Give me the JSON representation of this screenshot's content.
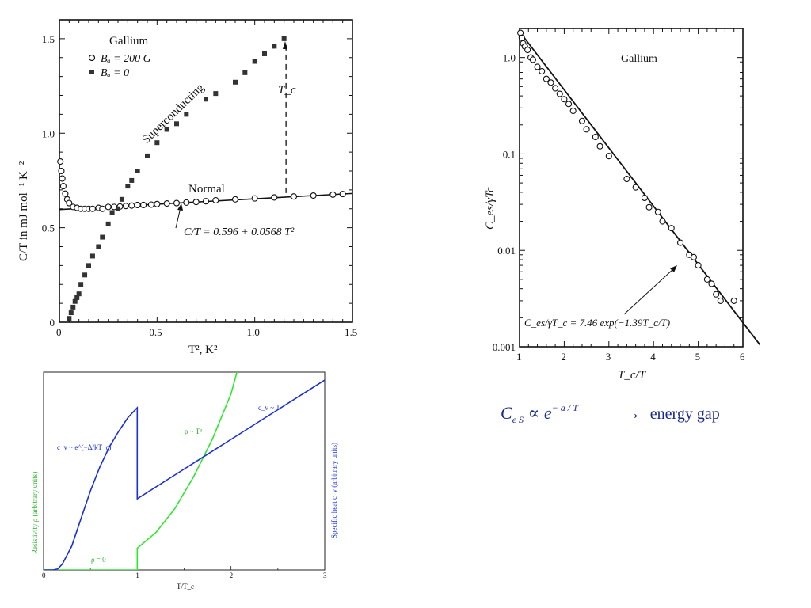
{
  "chart_data": [
    {
      "type": "scatter",
      "xlabel": "T², K²",
      "ylabel": "C/T in mJ mol⁻¹ K⁻²",
      "xlim": [
        0,
        1.5
      ],
      "ylim": [
        0,
        1.6
      ],
      "x_ticks": [
        "0",
        "0.5",
        "1.0",
        "1.5"
      ],
      "y_ticks": [
        "0",
        "0.5",
        "1.0",
        "1.5"
      ],
      "legend": {
        "title": "Gallium",
        "entries": [
          "Bₐ = 200 G",
          "Bₐ = 0"
        ],
        "placement": "top-left"
      },
      "annotations": [
        "Superconducting",
        "Normal",
        "T_c",
        "C/T = 0.596 + 0.0568 T²"
      ],
      "fit_line": {
        "intercept": 0.596,
        "slope": 0.0568
      },
      "tc_marker": {
        "x": 1.16,
        "y_top": 1.5
      },
      "series": [
        {
          "name": "Bₐ = 200 G",
          "marker": "open-circle",
          "x": [
            0.005,
            0.01,
            0.015,
            0.02,
            0.03,
            0.04,
            0.05,
            0.07,
            0.09,
            0.11,
            0.13,
            0.15,
            0.17,
            0.2,
            0.22,
            0.25,
            0.28,
            0.31,
            0.34,
            0.37,
            0.4,
            0.43,
            0.47,
            0.5,
            0.55,
            0.6,
            0.65,
            0.7,
            0.75,
            0.8,
            0.9,
            1.0,
            1.1,
            1.2,
            1.3,
            1.4,
            1.45
          ],
          "y": [
            0.85,
            0.8,
            0.76,
            0.72,
            0.68,
            0.65,
            0.63,
            0.61,
            0.605,
            0.6,
            0.6,
            0.6,
            0.6,
            0.605,
            0.6,
            0.61,
            0.61,
            0.612,
            0.615,
            0.617,
            0.62,
            0.62,
            0.622,
            0.625,
            0.628,
            0.63,
            0.633,
            0.636,
            0.64,
            0.645,
            0.65,
            0.655,
            0.66,
            0.665,
            0.67,
            0.675,
            0.678
          ]
        },
        {
          "name": "Bₐ = 0",
          "marker": "filled-square",
          "x": [
            0.05,
            0.06,
            0.07,
            0.08,
            0.09,
            0.1,
            0.11,
            0.13,
            0.15,
            0.17,
            0.2,
            0.22,
            0.25,
            0.27,
            0.3,
            0.32,
            0.35,
            0.37,
            0.4,
            0.45,
            0.5,
            0.55,
            0.6,
            0.65,
            0.75,
            0.8,
            0.9,
            0.95,
            1.0,
            1.05,
            1.1,
            1.15
          ],
          "y": [
            0.02,
            0.05,
            0.08,
            0.11,
            0.13,
            0.15,
            0.2,
            0.25,
            0.3,
            0.35,
            0.4,
            0.45,
            0.52,
            0.58,
            0.6,
            0.65,
            0.72,
            0.75,
            0.8,
            0.88,
            0.95,
            1.02,
            1.05,
            1.1,
            1.18,
            1.21,
            1.27,
            1.32,
            1.38,
            1.42,
            1.46,
            1.5
          ]
        }
      ]
    },
    {
      "type": "scatter",
      "yscale": "log",
      "xlabel": "T_c/T",
      "ylabel": "C_es/γTc",
      "xlim": [
        1,
        6
      ],
      "ylim": [
        0.001,
        2
      ],
      "x_ticks": [
        "1",
        "2",
        "3",
        "4",
        "5",
        "6"
      ],
      "y_ticks": [
        "1.0",
        "0.1",
        "0.01",
        "0.001"
      ],
      "annotations": [
        "Gallium",
        "C_es/γT_c = 7.46 exp(−1.39T_c/T)"
      ],
      "fit_line": {
        "a": 7.46,
        "b": 1.39
      },
      "series": [
        {
          "name": "Gallium",
          "marker": "open-circle",
          "x": [
            1.02,
            1.05,
            1.08,
            1.12,
            1.18,
            1.25,
            1.3,
            1.4,
            1.5,
            1.6,
            1.7,
            1.8,
            1.9,
            2.0,
            2.1,
            2.2,
            2.4,
            2.5,
            2.7,
            2.8,
            3.0,
            3.4,
            3.6,
            3.8,
            3.9,
            4.1,
            4.2,
            4.4,
            4.6,
            4.8,
            4.9,
            5.0,
            5.2,
            5.3,
            5.4,
            5.5,
            5.8
          ],
          "y": [
            1.8,
            1.6,
            1.4,
            1.3,
            1.2,
            1.0,
            0.95,
            0.8,
            0.72,
            0.6,
            0.55,
            0.48,
            0.42,
            0.37,
            0.33,
            0.28,
            0.22,
            0.18,
            0.15,
            0.12,
            0.095,
            0.055,
            0.045,
            0.035,
            0.028,
            0.025,
            0.02,
            0.017,
            0.012,
            0.009,
            0.0085,
            0.007,
            0.005,
            0.0045,
            0.0035,
            0.003,
            0.003
          ]
        }
      ]
    },
    {
      "type": "line",
      "xlabel": "T/T_c",
      "ylabel_left": "Resistivity ρ (arbitrary units)",
      "ylabel_right": "Specific heat c_v (arbitrary units)",
      "xlim": [
        0,
        3
      ],
      "ylim": [
        0,
        1
      ],
      "x_ticks": [
        "0",
        "1",
        "2",
        "3"
      ],
      "annotations": [
        "c_v ~ e^(−Δ/kT_c)",
        "ρ ~ T³",
        "c_v ~ T",
        "ρ = 0"
      ],
      "colors": {
        "resistivity": "#2ee82e",
        "specific_heat": "#1b2fd6"
      },
      "series": [
        {
          "name": "Specific heat c_v",
          "x": [
            0,
            0.1,
            0.15,
            0.2,
            0.3,
            0.4,
            0.5,
            0.6,
            0.7,
            0.8,
            0.9,
            1.0,
            1.0,
            1.5,
            2.0,
            2.5,
            3.0
          ],
          "y": [
            0,
            0,
            0.005,
            0.03,
            0.12,
            0.26,
            0.4,
            0.52,
            0.62,
            0.7,
            0.77,
            0.82,
            0.36,
            0.51,
            0.66,
            0.81,
            0.96
          ]
        },
        {
          "name": "Resistivity ρ",
          "x": [
            0,
            1.0,
            1.0,
            1.2,
            1.4,
            1.6,
            1.8,
            2.0,
            2.15
          ],
          "y": [
            0,
            0,
            0.11,
            0.19,
            0.31,
            0.47,
            0.66,
            0.89,
            1.15
          ]
        }
      ]
    }
  ],
  "formula_text": {
    "lhs": "C",
    "sub": "e S",
    "prop": "∝",
    "base": "e",
    "exponent": "− a / T",
    "arrow": "→",
    "label": "energy gap"
  }
}
